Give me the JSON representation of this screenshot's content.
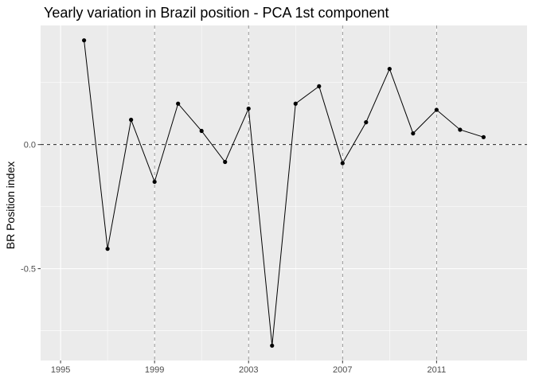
{
  "chart_data": {
    "type": "line",
    "title": "Yearly variation in Brazil position - PCA 1st component",
    "xlabel": "",
    "ylabel": "BR Position index",
    "x": [
      1996,
      1997,
      1998,
      1999,
      2000,
      2001,
      2002,
      2003,
      2004,
      2005,
      2006,
      2007,
      2008,
      2009,
      2010,
      2011,
      2012,
      2013
    ],
    "series": [
      {
        "values": [
          0.42,
          -0.42,
          0.1,
          -0.15,
          0.165,
          0.055,
          -0.07,
          0.145,
          -0.81,
          0.165,
          0.235,
          -0.075,
          0.09,
          0.305,
          0.045,
          0.14,
          0.06,
          0.03
        ]
      }
    ],
    "xlim": [
      1994.15,
      2014.85
    ],
    "ylim": [
      -0.87,
      0.48
    ],
    "x_ticks": [
      1995,
      1999,
      2003,
      2007,
      2011
    ],
    "x_tick_labels": [
      "1995",
      "1999",
      "2003",
      "2007",
      "2011"
    ],
    "y_ticks": [
      0.0,
      -0.5
    ],
    "y_tick_labels": [
      "0.0",
      "-0.5"
    ],
    "vlines": [
      1999,
      2003,
      2007,
      2011
    ],
    "hline": 0.0,
    "grid": true,
    "legend": "none",
    "colors": {
      "panel": "#ebebeb",
      "grid": "#ffffff",
      "line": "#000000",
      "point": "#000000",
      "reference": "#808080",
      "zero_line": "#000000"
    }
  }
}
